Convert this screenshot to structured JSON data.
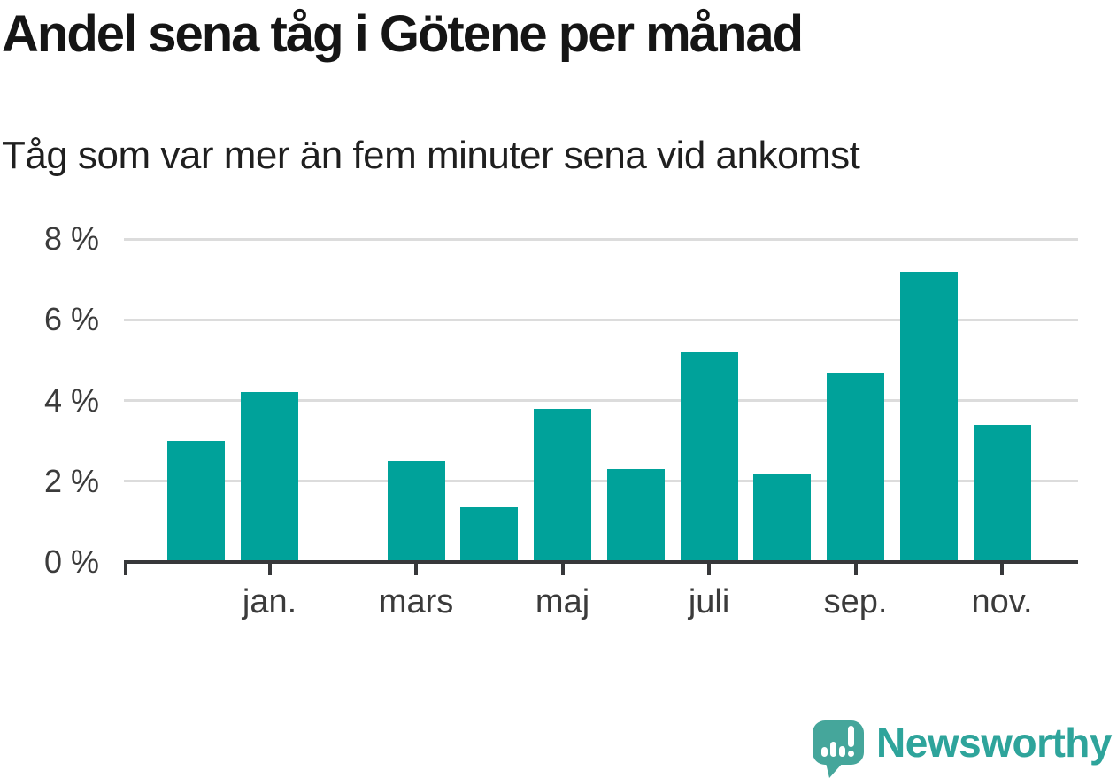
{
  "title": "Andel sena tåg i Götene per månad",
  "subtitle": "Tåg som var mer än fem minuter sena vid ankomst",
  "footer": {
    "brand": "Newsworthy",
    "logo_icon": "newsworthy-speech-bubble-bar-chart-icon"
  },
  "colors": {
    "bar": "#00a29a",
    "axis": "#37383a",
    "gridline": "#dcdcdc",
    "logo": "#45a69b",
    "logo_text": "#2ea49b",
    "background": "#ffffff"
  },
  "chart_data": {
    "type": "bar",
    "title": "Andel sena tåg i Götene per månad",
    "subtitle": "Tåg som var mer än fem minuter sena vid ankomst",
    "unit": "%",
    "categories": [
      "",
      "jan.",
      "",
      "mars",
      "",
      "maj",
      "",
      "juli",
      "",
      "sep.",
      "",
      "nov."
    ],
    "values": [
      3.0,
      4.2,
      null,
      2.5,
      1.35,
      3.8,
      2.3,
      5.2,
      2.2,
      4.7,
      7.2,
      3.4
    ],
    "y_ticks": [
      0,
      2,
      4,
      6,
      8
    ],
    "y_tick_labels": [
      "0 %",
      "2 %",
      "4 %",
      "6 %",
      "8 %"
    ],
    "ylim": [
      0,
      8
    ],
    "xlabel": "",
    "ylabel": "",
    "grid": true,
    "legend": "none",
    "bar_color": "#00a29a",
    "missing_value_indices": [
      2
    ]
  }
}
